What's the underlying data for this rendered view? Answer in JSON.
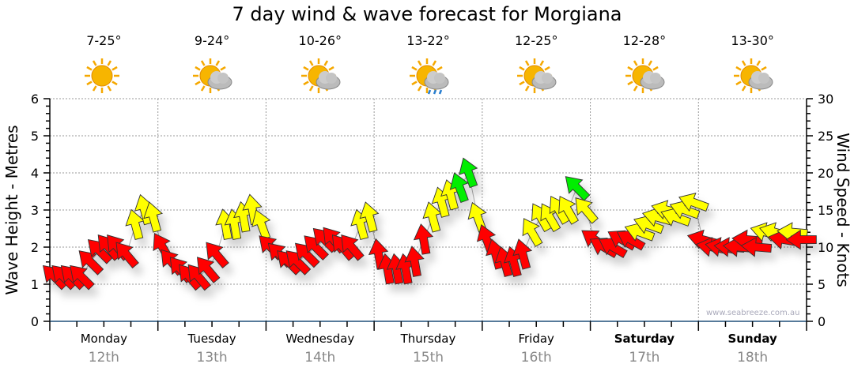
{
  "title": "7 day wind & wave forecast for Morgiana",
  "credit": "www.seabreeze.com.au",
  "days": [
    {
      "name": "Monday",
      "date": "12th",
      "temp": "7-25°",
      "icon": "sunny",
      "bold": false
    },
    {
      "name": "Tuesday",
      "date": "13th",
      "temp": "9-24°",
      "icon": "partly-cloudy",
      "bold": false
    },
    {
      "name": "Wednesday",
      "date": "14th",
      "temp": "10-26°",
      "icon": "partly-cloudy",
      "bold": false
    },
    {
      "name": "Thursday",
      "date": "15th",
      "temp": "13-22°",
      "icon": "showers",
      "bold": false
    },
    {
      "name": "Friday",
      "date": "16th",
      "temp": "12-25°",
      "icon": "partly-cloudy",
      "bold": false
    },
    {
      "name": "Saturday",
      "date": "17th",
      "temp": "12-28°",
      "icon": "partly-cloudy",
      "bold": true
    },
    {
      "name": "Sunday",
      "date": "18th",
      "temp": "13-30°",
      "icon": "partly-cloudy",
      "bold": true
    }
  ],
  "chart_data": {
    "type": "scatter",
    "title": "7 day wind & wave forecast for Morgiana",
    "ylabel_left": "Wave Height - Metres",
    "ylabel_right": "Wind Speed - Knots",
    "ylim_left": [
      0,
      6
    ],
    "ylim_right": [
      0,
      30
    ],
    "yticks_left": [
      "0",
      "1",
      "2",
      "3",
      "4",
      "5",
      "6"
    ],
    "yticks_right": [
      "0",
      "5",
      "10",
      "15",
      "20",
      "25",
      "30"
    ],
    "grid": true,
    "colors": {
      "light": "#ff0000",
      "moderate": "#ffff00",
      "strong": "#00ee00"
    },
    "thresholds_knots": [
      12,
      18
    ],
    "points_per_day": 12,
    "wind_speed_knots": [
      [
        6,
        6,
        6,
        6,
        8,
        9.5,
        10,
        10,
        9,
        13,
        15,
        14
      ],
      [
        10,
        8,
        7,
        6,
        6,
        7,
        9,
        13,
        13,
        14,
        15,
        13
      ],
      [
        10,
        9,
        8,
        8,
        9,
        10,
        11,
        11,
        10,
        10,
        13,
        14
      ],
      [
        9,
        7,
        7,
        7,
        8,
        11,
        14,
        16,
        17,
        18,
        20,
        14
      ],
      [
        11,
        9,
        8,
        8,
        9,
        12,
        14,
        14,
        15,
        15,
        18,
        15
      ],
      [
        11,
        10,
        10,
        11,
        11,
        12,
        13,
        14,
        15,
        14,
        15,
        16
      ],
      [
        11,
        10,
        10,
        10,
        10,
        11,
        10,
        12,
        12,
        11,
        12,
        11
      ]
    ],
    "arrow_bearing_deg": [
      [
        315,
        315,
        315,
        315,
        315,
        315,
        320,
        320,
        320,
        345,
        345,
        345
      ],
      [
        330,
        320,
        320,
        320,
        320,
        320,
        320,
        350,
        350,
        350,
        350,
        340
      ],
      [
        315,
        315,
        315,
        315,
        315,
        315,
        315,
        320,
        320,
        320,
        345,
        345
      ],
      [
        350,
        350,
        350,
        350,
        350,
        350,
        345,
        345,
        345,
        340,
        340,
        340
      ],
      [
        340,
        345,
        345,
        345,
        345,
        330,
        330,
        330,
        330,
        330,
        315,
        320
      ],
      [
        305,
        300,
        300,
        300,
        300,
        290,
        290,
        285,
        285,
        290,
        290,
        290
      ],
      [
        285,
        280,
        280,
        275,
        275,
        275,
        275,
        285,
        285,
        280,
        275,
        270
      ]
    ]
  }
}
